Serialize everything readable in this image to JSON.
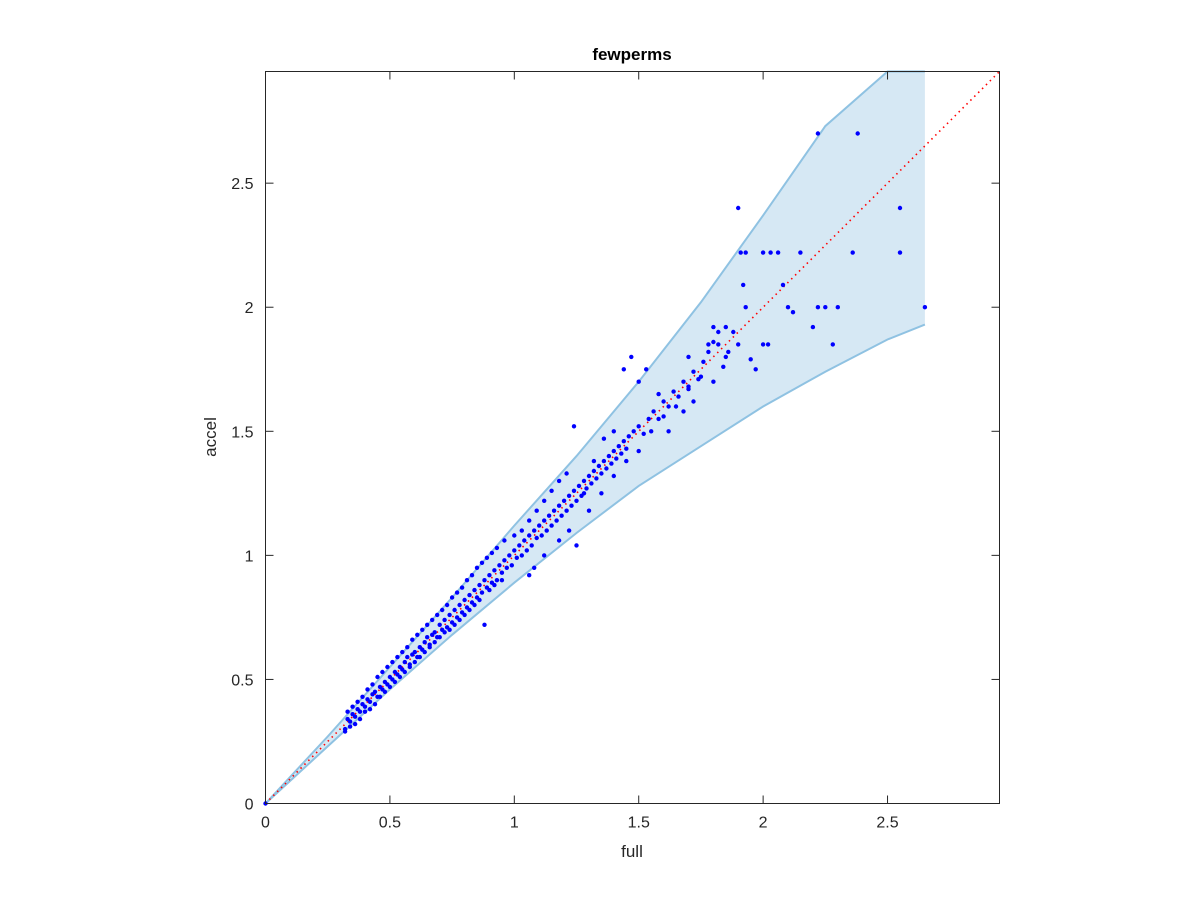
{
  "chart_data": {
    "type": "scatter",
    "title": "fewperms",
    "xlabel": "full",
    "ylabel": "accel",
    "xlim": [
      0,
      2.95
    ],
    "ylim": [
      0,
      2.95
    ],
    "xticks": [
      0,
      0.5,
      1,
      1.5,
      2,
      2.5
    ],
    "yticks": [
      0,
      0.5,
      1,
      1.5,
      2,
      2.5
    ],
    "xtick_labels": [
      "0",
      "0.5",
      "1",
      "1.5",
      "2",
      "2.5"
    ],
    "ytick_labels": [
      "0",
      "0.5",
      "1",
      "1.5",
      "2",
      "2.5"
    ],
    "grid": false,
    "legend": "none",
    "colors": {
      "points": "#0000ff",
      "band_fill": "#d6e8f4",
      "band_edge": "#8fc2e2",
      "reference_line": "#ff0000",
      "axis": "#262626"
    },
    "reference_line": {
      "style": "dotted",
      "from": [
        0,
        0
      ],
      "to": [
        2.95,
        2.95
      ]
    },
    "band": {
      "x": [
        0,
        0.25,
        0.5,
        0.75,
        1.0,
        1.25,
        1.5,
        1.75,
        2.0,
        2.25,
        2.5,
        2.65
      ],
      "upper": [
        0,
        0.27,
        0.55,
        0.83,
        1.12,
        1.4,
        1.7,
        2.02,
        2.37,
        2.73,
        2.95,
        2.95
      ],
      "lower": [
        0,
        0.23,
        0.46,
        0.68,
        0.89,
        1.09,
        1.28,
        1.44,
        1.6,
        1.74,
        1.87,
        1.93
      ]
    },
    "points": [
      [
        0,
        0
      ],
      [
        0.32,
        0.3
      ],
      [
        0.33,
        0.34
      ],
      [
        0.34,
        0.33
      ],
      [
        0.35,
        0.36
      ],
      [
        0.36,
        0.35
      ],
      [
        0.37,
        0.38
      ],
      [
        0.38,
        0.37
      ],
      [
        0.39,
        0.4
      ],
      [
        0.4,
        0.39
      ],
      [
        0.41,
        0.42
      ],
      [
        0.42,
        0.41
      ],
      [
        0.43,
        0.44
      ],
      [
        0.44,
        0.45
      ],
      [
        0.45,
        0.43
      ],
      [
        0.46,
        0.47
      ],
      [
        0.47,
        0.46
      ],
      [
        0.48,
        0.49
      ],
      [
        0.49,
        0.48
      ],
      [
        0.5,
        0.51
      ],
      [
        0.51,
        0.5
      ],
      [
        0.52,
        0.53
      ],
      [
        0.53,
        0.52
      ],
      [
        0.54,
        0.55
      ],
      [
        0.55,
        0.54
      ],
      [
        0.56,
        0.57
      ],
      [
        0.57,
        0.59
      ],
      [
        0.58,
        0.56
      ],
      [
        0.59,
        0.6
      ],
      [
        0.6,
        0.61
      ],
      [
        0.61,
        0.59
      ],
      [
        0.62,
        0.63
      ],
      [
        0.63,
        0.62
      ],
      [
        0.64,
        0.65
      ],
      [
        0.65,
        0.67
      ],
      [
        0.66,
        0.64
      ],
      [
        0.67,
        0.68
      ],
      [
        0.68,
        0.69
      ],
      [
        0.69,
        0.67
      ],
      [
        0.7,
        0.72
      ],
      [
        0.71,
        0.7
      ],
      [
        0.72,
        0.74
      ],
      [
        0.73,
        0.71
      ],
      [
        0.74,
        0.76
      ],
      [
        0.75,
        0.73
      ],
      [
        0.76,
        0.78
      ],
      [
        0.77,
        0.75
      ],
      [
        0.78,
        0.8
      ],
      [
        0.79,
        0.77
      ],
      [
        0.8,
        0.82
      ],
      [
        0.81,
        0.79
      ],
      [
        0.82,
        0.84
      ],
      [
        0.83,
        0.81
      ],
      [
        0.84,
        0.86
      ],
      [
        0.85,
        0.83
      ],
      [
        0.86,
        0.88
      ],
      [
        0.87,
        0.85
      ],
      [
        0.88,
        0.9
      ],
      [
        0.89,
        0.87
      ],
      [
        0.9,
        0.92
      ],
      [
        0.91,
        0.89
      ],
      [
        0.92,
        0.94
      ],
      [
        0.93,
        0.9
      ],
      [
        0.94,
        0.96
      ],
      [
        0.95,
        0.93
      ],
      [
        0.96,
        0.98
      ],
      [
        0.97,
        0.95
      ],
      [
        0.98,
        1.0
      ],
      [
        0.99,
        0.96
      ],
      [
        1.0,
        1.02
      ],
      [
        1.01,
        0.99
      ],
      [
        1.02,
        1.04
      ],
      [
        1.03,
        1.0
      ],
      [
        1.04,
        1.06
      ],
      [
        1.05,
        1.02
      ],
      [
        1.06,
        1.08
      ],
      [
        1.07,
        1.04
      ],
      [
        1.08,
        1.1
      ],
      [
        1.09,
        1.07
      ],
      [
        1.1,
        1.12
      ],
      [
        1.11,
        1.08
      ],
      [
        1.12,
        1.14
      ],
      [
        1.13,
        1.1
      ],
      [
        1.14,
        1.16
      ],
      [
        1.15,
        1.12
      ],
      [
        1.16,
        1.18
      ],
      [
        1.17,
        1.14
      ],
      [
        1.18,
        1.2
      ],
      [
        1.19,
        1.16
      ],
      [
        1.2,
        1.22
      ],
      [
        1.21,
        1.18
      ],
      [
        1.22,
        1.24
      ],
      [
        1.23,
        1.2
      ],
      [
        1.24,
        1.26
      ],
      [
        1.25,
        1.22
      ],
      [
        1.26,
        1.28
      ],
      [
        1.27,
        1.24
      ],
      [
        1.28,
        1.3
      ],
      [
        1.29,
        1.27
      ],
      [
        1.3,
        1.32
      ],
      [
        1.31,
        1.29
      ],
      [
        1.32,
        1.34
      ],
      [
        1.33,
        1.31
      ],
      [
        1.34,
        1.36
      ],
      [
        1.35,
        1.33
      ],
      [
        1.36,
        1.38
      ],
      [
        1.37,
        1.35
      ],
      [
        1.38,
        1.4
      ],
      [
        1.39,
        1.37
      ],
      [
        1.4,
        1.42
      ],
      [
        1.41,
        1.39
      ],
      [
        1.42,
        1.44
      ],
      [
        1.43,
        1.41
      ],
      [
        1.44,
        1.46
      ],
      [
        1.45,
        1.43
      ],
      [
        1.46,
        1.48
      ],
      [
        1.48,
        1.5
      ],
      [
        1.5,
        1.52
      ],
      [
        1.52,
        1.49
      ],
      [
        1.54,
        1.55
      ],
      [
        1.56,
        1.58
      ],
      [
        1.58,
        1.55
      ],
      [
        1.6,
        1.62
      ],
      [
        1.62,
        1.6
      ],
      [
        1.64,
        1.66
      ],
      [
        1.66,
        1.64
      ],
      [
        1.68,
        1.7
      ],
      [
        1.7,
        1.67
      ],
      [
        1.72,
        1.74
      ],
      [
        1.74,
        1.71
      ],
      [
        1.76,
        1.78
      ],
      [
        1.78,
        1.82
      ],
      [
        1.8,
        1.86
      ],
      [
        1.82,
        1.9
      ],
      [
        1.84,
        1.76
      ],
      [
        1.86,
        1.82
      ],
      [
        1.88,
        1.9
      ],
      [
        0.32,
        0.29
      ],
      [
        0.34,
        0.31
      ],
      [
        0.36,
        0.32
      ],
      [
        0.38,
        0.34
      ],
      [
        0.4,
        0.37
      ],
      [
        0.42,
        0.38
      ],
      [
        0.44,
        0.4
      ],
      [
        0.46,
        0.43
      ],
      [
        0.48,
        0.45
      ],
      [
        0.5,
        0.47
      ],
      [
        0.52,
        0.49
      ],
      [
        0.54,
        0.51
      ],
      [
        0.56,
        0.53
      ],
      [
        0.58,
        0.55
      ],
      [
        0.6,
        0.57
      ],
      [
        0.62,
        0.59
      ],
      [
        0.64,
        0.61
      ],
      [
        0.66,
        0.63
      ],
      [
        0.68,
        0.65
      ],
      [
        0.7,
        0.67
      ],
      [
        0.72,
        0.69
      ],
      [
        0.74,
        0.7
      ],
      [
        0.76,
        0.72
      ],
      [
        0.78,
        0.74
      ],
      [
        0.8,
        0.76
      ],
      [
        0.82,
        0.78
      ],
      [
        0.84,
        0.8
      ],
      [
        0.86,
        0.82
      ],
      [
        0.88,
        0.72
      ],
      [
        0.9,
        0.86
      ],
      [
        0.92,
        0.88
      ],
      [
        0.95,
        0.9
      ],
      [
        0.33,
        0.37
      ],
      [
        0.35,
        0.39
      ],
      [
        0.37,
        0.41
      ],
      [
        0.39,
        0.43
      ],
      [
        0.41,
        0.46
      ],
      [
        0.43,
        0.48
      ],
      [
        0.45,
        0.51
      ],
      [
        0.47,
        0.53
      ],
      [
        0.49,
        0.55
      ],
      [
        0.51,
        0.57
      ],
      [
        0.53,
        0.59
      ],
      [
        0.55,
        0.61
      ],
      [
        0.57,
        0.63
      ],
      [
        0.59,
        0.66
      ],
      [
        0.61,
        0.68
      ],
      [
        0.63,
        0.7
      ],
      [
        0.65,
        0.72
      ],
      [
        0.67,
        0.74
      ],
      [
        0.69,
        0.76
      ],
      [
        0.71,
        0.78
      ],
      [
        0.73,
        0.8
      ],
      [
        0.75,
        0.83
      ],
      [
        0.77,
        0.85
      ],
      [
        0.79,
        0.87
      ],
      [
        0.81,
        0.9
      ],
      [
        0.83,
        0.92
      ],
      [
        0.85,
        0.95
      ],
      [
        0.87,
        0.97
      ],
      [
        0.89,
        0.99
      ],
      [
        0.91,
        1.01
      ],
      [
        0.93,
        1.03
      ],
      [
        0.96,
        1.06
      ],
      [
        1.0,
        1.08
      ],
      [
        1.03,
        1.1
      ],
      [
        1.06,
        1.14
      ],
      [
        1.09,
        1.18
      ],
      [
        1.12,
        1.22
      ],
      [
        1.15,
        1.26
      ],
      [
        1.18,
        1.3
      ],
      [
        1.21,
        1.33
      ],
      [
        1.24,
        1.52
      ],
      [
        1.25,
        1.04
      ],
      [
        1.28,
        1.25
      ],
      [
        1.32,
        1.38
      ],
      [
        1.36,
        1.47
      ],
      [
        1.4,
        1.5
      ],
      [
        1.44,
        1.75
      ],
      [
        1.47,
        1.8
      ],
      [
        1.5,
        1.7
      ],
      [
        1.53,
        1.75
      ],
      [
        1.06,
        0.92
      ],
      [
        1.08,
        0.95
      ],
      [
        1.12,
        1.0
      ],
      [
        1.18,
        1.06
      ],
      [
        1.22,
        1.1
      ],
      [
        1.3,
        1.18
      ],
      [
        1.35,
        1.25
      ],
      [
        1.4,
        1.32
      ],
      [
        1.45,
        1.38
      ],
      [
        1.5,
        1.42
      ],
      [
        1.55,
        1.5
      ],
      [
        1.6,
        1.56
      ],
      [
        1.65,
        1.6
      ],
      [
        1.7,
        1.68
      ],
      [
        1.75,
        1.72
      ],
      [
        1.8,
        1.7
      ],
      [
        1.85,
        1.8
      ],
      [
        1.9,
        1.85
      ],
      [
        1.95,
        1.79
      ],
      [
        1.97,
        1.75
      ],
      [
        2.0,
        1.85
      ],
      [
        2.02,
        1.85
      ],
      [
        1.9,
        2.4
      ],
      [
        1.91,
        2.22
      ],
      [
        1.93,
        2.22
      ],
      [
        1.92,
        2.09
      ],
      [
        1.93,
        2.0
      ],
      [
        2.0,
        2.22
      ],
      [
        2.03,
        2.22
      ],
      [
        2.06,
        2.22
      ],
      [
        2.08,
        2.09
      ],
      [
        2.1,
        2.0
      ],
      [
        2.12,
        1.98
      ],
      [
        2.2,
        1.92
      ],
      [
        2.22,
        2.0
      ],
      [
        2.25,
        2.0
      ],
      [
        2.28,
        1.85
      ],
      [
        2.22,
        2.7
      ],
      [
        2.38,
        2.7
      ],
      [
        2.36,
        2.22
      ],
      [
        2.55,
        2.4
      ],
      [
        2.55,
        2.22
      ],
      [
        2.65,
        2.0
      ],
      [
        2.3,
        2.0
      ],
      [
        2.15,
        2.22
      ],
      [
        1.85,
        1.92
      ],
      [
        1.8,
        1.92
      ],
      [
        1.78,
        1.85
      ],
      [
        1.82,
        1.85
      ],
      [
        1.7,
        1.8
      ],
      [
        1.72,
        1.62
      ],
      [
        1.68,
        1.58
      ],
      [
        1.62,
        1.5
      ],
      [
        1.58,
        1.65
      ]
    ]
  }
}
